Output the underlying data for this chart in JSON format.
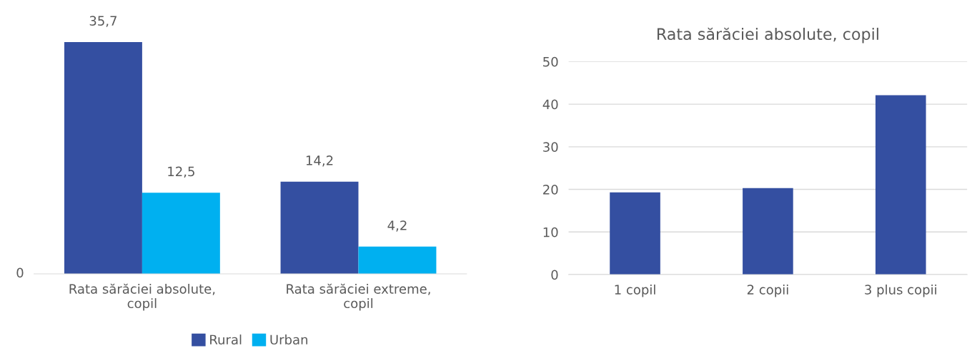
{
  "chart_data": [
    {
      "type": "bar",
      "categories": [
        "Rata sărăciei absolute,\ncopil",
        "Rata sărăciei extreme,\ncopil"
      ],
      "series": [
        {
          "name": "Rural",
          "color": "#344fa1",
          "values": [
            35.7,
            14.2
          ],
          "value_labels": [
            "35,7",
            "14,2"
          ]
        },
        {
          "name": "Urban",
          "color": "#00b0f0",
          "values": [
            12.5,
            4.2
          ],
          "value_labels": [
            "12,5",
            "4,2"
          ]
        }
      ],
      "annotations": [
        "0"
      ],
      "grid": false,
      "legend": "bottom"
    },
    {
      "type": "bar",
      "title": "Rata sărăciei absolute, copil",
      "categories": [
        "1 copil",
        "2 copii",
        "3 plus copii"
      ],
      "values": [
        19.3,
        20.3,
        42.1
      ],
      "color": "#344fa1",
      "ylim": [
        0,
        50
      ],
      "yticks": [
        0,
        10,
        20,
        30,
        40,
        50
      ],
      "grid": "y",
      "legend": false
    }
  ]
}
